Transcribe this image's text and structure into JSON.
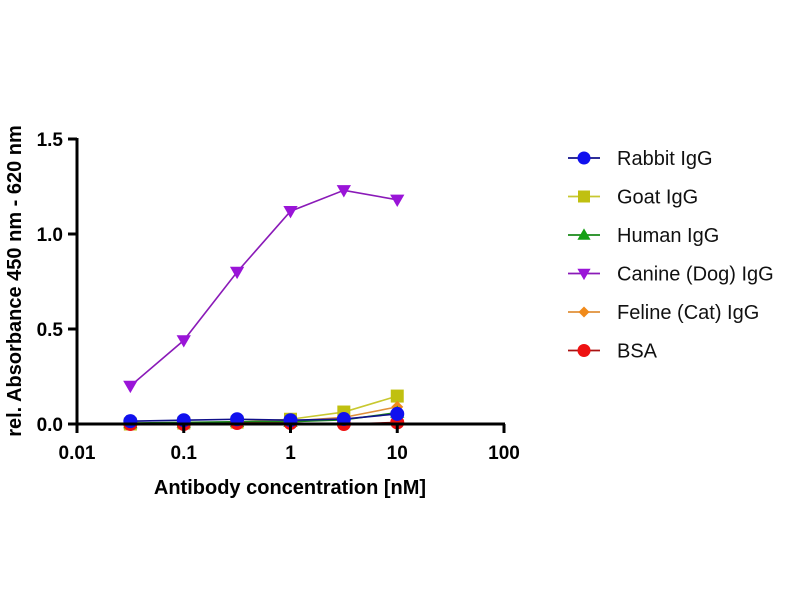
{
  "chart_data": {
    "type": "line",
    "title": "",
    "xlabel": "Antibody concentration [nM]",
    "ylabel": "rel. Absorbance 450 nm - 620 nm",
    "xscale": "log",
    "xlim": [
      0.01,
      100
    ],
    "ylim": [
      0,
      1.5
    ],
    "xticks": [
      0.01,
      0.1,
      1,
      10,
      100
    ],
    "xtick_labels": [
      "0.01",
      "0.1",
      "1",
      "10",
      "100"
    ],
    "yticks": [
      0,
      0.5,
      1.0,
      1.5
    ],
    "ytick_labels": [
      "0.0",
      "0.5",
      "1.0",
      "1.5"
    ],
    "grid": false,
    "legend_position": "right",
    "x": [
      0.0316,
      0.1,
      0.316,
      1,
      3.16,
      10
    ],
    "series": [
      {
        "name": "Rabbit IgG",
        "marker": "circle",
        "color": "#1010ee",
        "line_color": "#10108a",
        "values": [
          0.015,
          0.02,
          0.025,
          0.02,
          0.026,
          0.053
        ]
      },
      {
        "name": "Goat IgG",
        "marker": "square",
        "color": "#c0c010",
        "line_color": "#c8c830",
        "values": [
          0.0,
          0.005,
          0.01,
          0.025,
          0.063,
          0.147
        ]
      },
      {
        "name": "Human IgG",
        "marker": "triangle-up",
        "color": "#14a014",
        "line_color": "#1a8a1a",
        "values": [
          0.005,
          0.008,
          0.012,
          0.012,
          0.022,
          0.06
        ]
      },
      {
        "name": "Canine (Dog) IgG",
        "marker": "triangle-down",
        "color": "#9a14d8",
        "line_color": "#8a1ab8",
        "values": [
          0.2,
          0.44,
          0.8,
          1.12,
          1.23,
          1.18
        ]
      },
      {
        "name": "Feline (Cat) IgG",
        "marker": "diamond",
        "color": "#f08a1a",
        "line_color": "#e0903a",
        "values": [
          0.003,
          0.006,
          0.01,
          0.015,
          0.035,
          0.09
        ]
      },
      {
        "name": "BSA",
        "marker": "circle",
        "color": "#ee1111",
        "line_color": "#aa1111",
        "values": [
          0.0,
          0.0,
          0.005,
          0.005,
          0.0,
          0.008
        ]
      }
    ]
  }
}
